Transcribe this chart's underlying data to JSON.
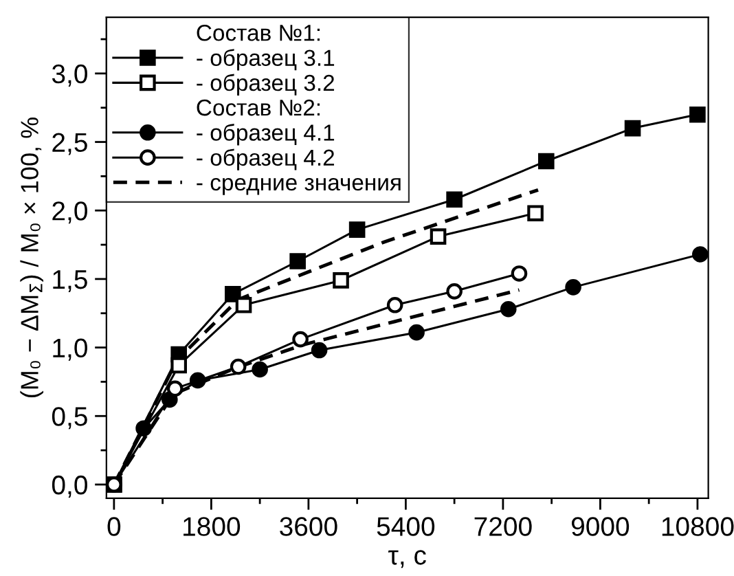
{
  "chart_data": {
    "type": "line",
    "xlabel": "τ, с",
    "ylabel": "(M₀ − ΔM$_{Σ}$) / M₀ × 100, %",
    "xlim": [
      -140,
      11000
    ],
    "xticks": [
      0,
      1800,
      3600,
      5400,
      7200,
      9000,
      10800
    ],
    "ylim": [
      -0.1,
      3.41
    ],
    "yticks": [
      {
        "value": 0,
        "label": "0,0"
      },
      {
        "value": 0.5,
        "label": "0,5"
      },
      {
        "value": 1,
        "label": "1,0"
      },
      {
        "value": 1.5,
        "label": "1,5"
      },
      {
        "value": 2,
        "label": "2,0"
      },
      {
        "value": 2.5,
        "label": "2,5"
      },
      {
        "value": 3,
        "label": "3,0"
      }
    ],
    "grid": false,
    "legend": "top left",
    "annotations": [
      "Состав №1:",
      "Состав №2:"
    ],
    "series": [
      {
        "name": "- образец 3.1",
        "color": "#000000",
        "marker": "square",
        "line_style": "solid",
        "x": [
          0,
          1200,
          2200,
          3400,
          4500,
          6300,
          8000,
          9600,
          10800
        ],
        "values": [
          0,
          0.95,
          1.39,
          1.63,
          1.86,
          2.08,
          2.36,
          2.6,
          2.7
        ]
      },
      {
        "name": "- образец 3.2",
        "color": "#000000",
        "marker": "square",
        "colors": [
          "#ffffff",
          "#ffffff",
          "#ffffff",
          "#ffffff",
          "#ffffff",
          "#ffffff"
        ],
        "line_style": "solid",
        "x": [
          0,
          1200,
          2400,
          4200,
          6000,
          7800
        ],
        "values": [
          0,
          0.87,
          1.31,
          1.49,
          1.81,
          1.98
        ]
      },
      {
        "name": "- образец 4.1",
        "color": "#000000",
        "marker": "circle",
        "line_style": "solid",
        "x": [
          0,
          550,
          1030,
          1550,
          2700,
          3800,
          5600,
          7300,
          8500,
          10850
        ],
        "values": [
          0,
          0.41,
          0.62,
          0.76,
          0.84,
          0.98,
          1.11,
          1.28,
          1.44,
          1.68
        ]
      },
      {
        "name": "- образец 4.2",
        "color": "#000000",
        "marker": "circle",
        "colors": [
          "#ffffff",
          "#ffffff",
          "#ffffff",
          "#ffffff",
          "#ffffff",
          "#ffffff",
          "#ffffff"
        ],
        "line_style": "solid",
        "x": [
          0,
          1130,
          2300,
          3450,
          5200,
          6300,
          7500
        ],
        "values": [
          0,
          0.7,
          0.86,
          1.06,
          1.31,
          1.41,
          1.54
        ]
      },
      {
        "name": "- средние значения",
        "color": "#000000",
        "marker": "none",
        "line_style": "dashed",
        "x": [
          0,
          1170,
          2300,
          5000,
          7850
        ],
        "values": [
          0,
          0.91,
          1.35,
          1.77,
          2.15
        ]
      },
      {
        "color": "#000000",
        "marker": "none",
        "line_style": "dashed",
        "x": [
          0,
          1100,
          2250,
          3500,
          5200,
          7500
        ],
        "values": [
          0,
          0.66,
          0.85,
          1.02,
          1.19,
          1.42
        ]
      }
    ]
  }
}
